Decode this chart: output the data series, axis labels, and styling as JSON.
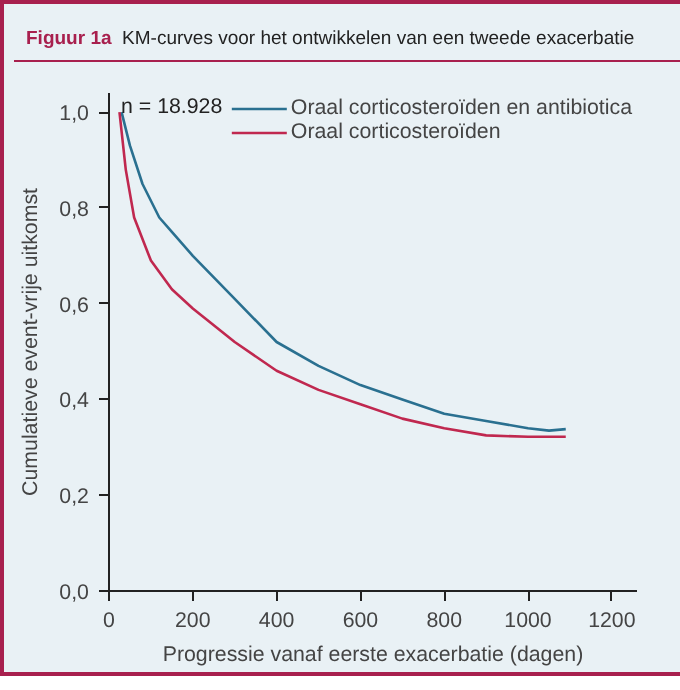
{
  "chart_data": {
    "type": "line",
    "title": "KM-curves voor het ontwikkelen van een tweede exacerbatie",
    "xlabel": "Progressie vanaf eerste exacerbatie (dagen)",
    "ylabel": "Cumulatieve event-vrije uitkomst",
    "annotations": [
      "Figuur 1a",
      "n = 18.928"
    ],
    "series": [
      {
        "name": "Oraal corticosteroïden en antibiotica",
        "color": "#2a7090",
        "x": [
          30,
          50,
          80,
          120,
          150,
          200,
          300,
          400,
          500,
          600,
          700,
          800,
          900,
          1000,
          1050,
          1090
        ],
        "values": [
          1.0,
          0.93,
          0.85,
          0.78,
          0.75,
          0.7,
          0.61,
          0.52,
          0.47,
          0.43,
          0.4,
          0.37,
          0.355,
          0.34,
          0.335,
          0.338
        ]
      },
      {
        "name": "Oraal corticosteroïden",
        "color": "#c0284f",
        "x": [
          25,
          40,
          60,
          100,
          150,
          200,
          300,
          400,
          500,
          600,
          700,
          800,
          900,
          1000,
          1090
        ],
        "values": [
          1.0,
          0.88,
          0.78,
          0.69,
          0.63,
          0.59,
          0.52,
          0.46,
          0.42,
          0.39,
          0.36,
          0.34,
          0.325,
          0.322,
          0.322
        ]
      }
    ],
    "xlim": [
      0,
      1260
    ],
    "ylim": [
      0,
      1.04
    ],
    "xticks": [
      0,
      200,
      400,
      600,
      800,
      1000,
      1200
    ],
    "yticks": [
      {
        "value": 0,
        "label": "0,0"
      },
      {
        "value": 0.2,
        "label": "0,2"
      },
      {
        "value": 0.4,
        "label": "0,4"
      },
      {
        "value": 0.6,
        "label": "0,6"
      },
      {
        "value": 0.8,
        "label": "0,8"
      },
      {
        "value": 1.0,
        "label": "1,0"
      }
    ],
    "grid": false,
    "legend": "top right",
    "marker": "none",
    "line_style": "solid"
  }
}
